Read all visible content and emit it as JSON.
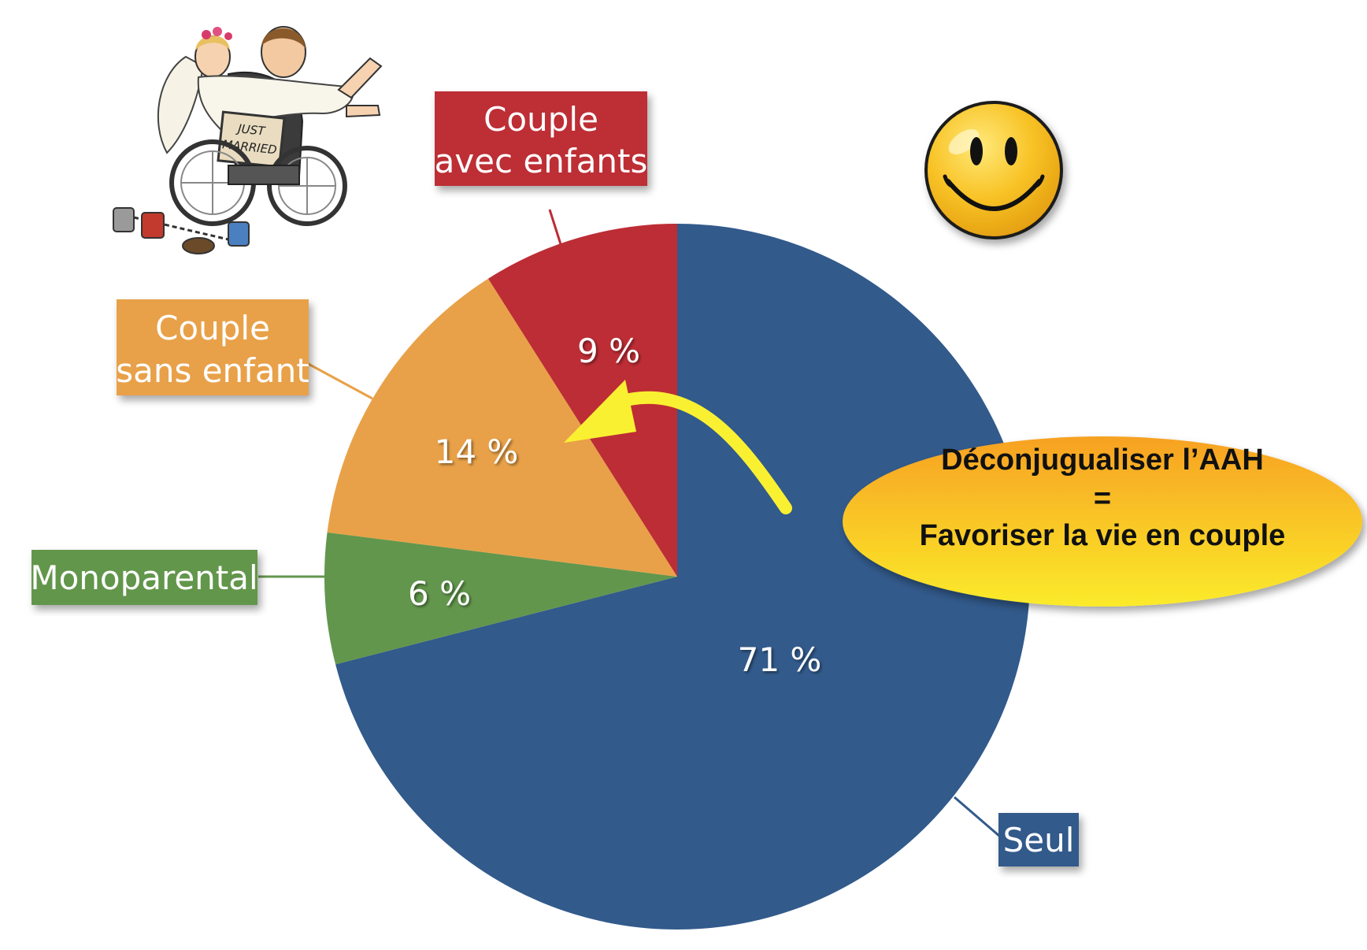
{
  "chart_data": {
    "type": "pie",
    "start_angle_deg": 0,
    "direction": "clockwise",
    "slices": [
      {
        "key": "seul",
        "label": "Seul",
        "value": 71,
        "value_label": "71 %",
        "color": "#325A8B"
      },
      {
        "key": "monoparental",
        "label": "Monoparental",
        "value": 6,
        "value_label": "6 %",
        "color": "#62964C"
      },
      {
        "key": "sans_enfant",
        "label_lines": [
          "Couple",
          "sans enfant"
        ],
        "value": 14,
        "value_label": "14 %",
        "color": "#E8A148"
      },
      {
        "key": "avec_enfants",
        "label_lines": [
          "Couple",
          "avec enfants"
        ],
        "value": 9,
        "value_label": "9 %",
        "color": "#BD2D35"
      }
    ]
  },
  "callout": {
    "lines": [
      "Déconjugualiser l’AAH",
      "=",
      "Favoriser la vie en couple"
    ],
    "colors": {
      "top": "#F7A123",
      "bottom": "#FBEB2A"
    }
  },
  "arrow": {
    "color": "#FAF032"
  },
  "illustrations": {
    "couple_sign_lines": [
      "JUST",
      "MARRIED"
    ],
    "smiley_icon": "smiley-face-icon",
    "couple_icon": "wheelchair-wedding-couple-icon"
  }
}
